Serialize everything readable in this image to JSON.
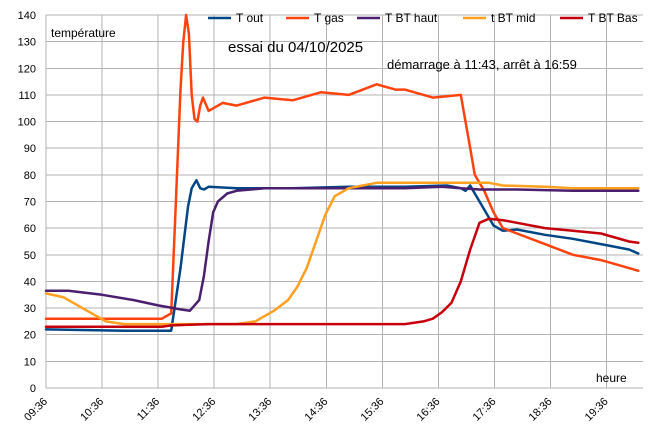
{
  "chart_data": {
    "type": "line",
    "title": "essai du 04/10/2025",
    "subtitle": "démarrage à 11:43, arrêt à 16:59",
    "ylabel": "température",
    "xlabel": "heure",
    "ylim": [
      0,
      140
    ],
    "yticks": [
      0,
      10,
      20,
      30,
      40,
      50,
      60,
      70,
      80,
      90,
      100,
      110,
      120,
      130,
      140
    ],
    "xlim": [
      "09:36",
      "20:15"
    ],
    "xticks": [
      "09:36",
      "10:36",
      "11:36",
      "12:36",
      "13:36",
      "14:36",
      "15:36",
      "16:36",
      "17:36",
      "18:36",
      "19:36"
    ],
    "grid": true,
    "legend_position": "top-right",
    "series": [
      {
        "name": "T out",
        "color": "#004586",
        "points": [
          [
            "09:36",
            22
          ],
          [
            "11:00",
            21.5
          ],
          [
            "11:50",
            21.5
          ],
          [
            "12:00",
            45
          ],
          [
            "12:08",
            68
          ],
          [
            "12:12",
            75
          ],
          [
            "12:17",
            78
          ],
          [
            "12:21",
            75
          ],
          [
            "12:25",
            74.5
          ],
          [
            "12:30",
            75.5
          ],
          [
            "13:00",
            75
          ],
          [
            "14:00",
            75
          ],
          [
            "15:00",
            75.5
          ],
          [
            "16:00",
            75.5
          ],
          [
            "16:45",
            76
          ],
          [
            "17:00",
            75
          ],
          [
            "17:05",
            74
          ],
          [
            "17:10",
            76
          ],
          [
            "17:15",
            73
          ],
          [
            "17:25",
            67
          ],
          [
            "17:35",
            61
          ],
          [
            "17:45",
            59
          ],
          [
            "18:00",
            59.5
          ],
          [
            "18:30",
            57.5
          ],
          [
            "19:00",
            56
          ],
          [
            "19:30",
            54
          ],
          [
            "20:00",
            52
          ],
          [
            "20:10",
            50.5
          ]
        ]
      },
      {
        "name": "T gas",
        "color": "#ff420e",
        "points": [
          [
            "09:36",
            26
          ],
          [
            "11:40",
            26
          ],
          [
            "11:50",
            28
          ],
          [
            "11:55",
            70
          ],
          [
            "12:00",
            112
          ],
          [
            "12:03",
            130
          ],
          [
            "12:06",
            140
          ],
          [
            "12:09",
            133
          ],
          [
            "12:12",
            110
          ],
          [
            "12:15",
            101
          ],
          [
            "12:18",
            100
          ],
          [
            "12:21",
            106
          ],
          [
            "12:24",
            109
          ],
          [
            "12:30",
            104
          ],
          [
            "12:45",
            107
          ],
          [
            "13:00",
            106
          ],
          [
            "13:30",
            109
          ],
          [
            "14:00",
            108
          ],
          [
            "14:30",
            111
          ],
          [
            "15:00",
            110
          ],
          [
            "15:30",
            114
          ],
          [
            "15:50",
            112
          ],
          [
            "16:00",
            112
          ],
          [
            "16:30",
            109
          ],
          [
            "17:00",
            110
          ],
          [
            "17:05",
            100
          ],
          [
            "17:10",
            90
          ],
          [
            "17:15",
            80
          ],
          [
            "17:25",
            74
          ],
          [
            "17:35",
            66
          ],
          [
            "17:45",
            60
          ],
          [
            "18:00",
            58
          ],
          [
            "18:30",
            54
          ],
          [
            "19:00",
            50
          ],
          [
            "19:30",
            48
          ],
          [
            "20:00",
            45
          ],
          [
            "20:10",
            44
          ]
        ]
      },
      {
        "name": "T BT haut",
        "color": "#4b1f6f",
        "points": [
          [
            "09:36",
            36.5
          ],
          [
            "10:00",
            36.5
          ],
          [
            "10:36",
            35
          ],
          [
            "11:10",
            33
          ],
          [
            "11:36",
            31
          ],
          [
            "12:00",
            29.5
          ],
          [
            "12:10",
            29
          ],
          [
            "12:20",
            33
          ],
          [
            "12:25",
            42
          ],
          [
            "12:30",
            55
          ],
          [
            "12:35",
            66
          ],
          [
            "12:40",
            70
          ],
          [
            "12:50",
            73
          ],
          [
            "13:00",
            74
          ],
          [
            "13:30",
            75
          ],
          [
            "14:00",
            75
          ],
          [
            "15:00",
            75
          ],
          [
            "16:00",
            75
          ],
          [
            "16:40",
            75.5
          ],
          [
            "17:00",
            75
          ],
          [
            "17:20",
            74.5
          ],
          [
            "18:00",
            74.5
          ],
          [
            "19:00",
            74
          ],
          [
            "20:10",
            74
          ]
        ]
      },
      {
        "name": "t BT mid",
        "color": "#ffa020",
        "points": [
          [
            "09:36",
            35.5
          ],
          [
            "09:55",
            34
          ],
          [
            "10:15",
            30
          ],
          [
            "10:30",
            27
          ],
          [
            "10:40",
            25
          ],
          [
            "11:00",
            24
          ],
          [
            "12:00",
            24
          ],
          [
            "13:00",
            24
          ],
          [
            "13:20",
            25
          ],
          [
            "13:40",
            29
          ],
          [
            "13:55",
            33
          ],
          [
            "14:05",
            38
          ],
          [
            "14:15",
            45
          ],
          [
            "14:25",
            55
          ],
          [
            "14:35",
            65
          ],
          [
            "14:45",
            72
          ],
          [
            "15:00",
            75
          ],
          [
            "15:15",
            76
          ],
          [
            "15:30",
            77
          ],
          [
            "16:00",
            77
          ],
          [
            "16:30",
            77
          ],
          [
            "17:00",
            77
          ],
          [
            "17:30",
            77
          ],
          [
            "17:45",
            76
          ],
          [
            "18:30",
            75.5
          ],
          [
            "19:00",
            75
          ],
          [
            "20:10",
            75
          ]
        ]
      },
      {
        "name": "T BT Bas",
        "color": "#c5000b",
        "points": [
          [
            "09:36",
            23
          ],
          [
            "10:00",
            23
          ],
          [
            "10:30",
            23
          ],
          [
            "11:00",
            23
          ],
          [
            "11:40",
            23
          ],
          [
            "11:50",
            23.5
          ],
          [
            "12:30",
            24
          ],
          [
            "13:00",
            24
          ],
          [
            "14:00",
            24
          ],
          [
            "15:00",
            24
          ],
          [
            "16:00",
            24
          ],
          [
            "16:20",
            25
          ],
          [
            "16:30",
            26
          ],
          [
            "16:40",
            28.5
          ],
          [
            "16:50",
            32
          ],
          [
            "17:00",
            40
          ],
          [
            "17:10",
            52
          ],
          [
            "17:20",
            62
          ],
          [
            "17:30",
            63.5
          ],
          [
            "17:45",
            63
          ],
          [
            "18:00",
            62
          ],
          [
            "18:30",
            60
          ],
          [
            "19:00",
            59
          ],
          [
            "19:30",
            58
          ],
          [
            "20:00",
            55
          ],
          [
            "20:10",
            54.5
          ]
        ]
      }
    ]
  }
}
